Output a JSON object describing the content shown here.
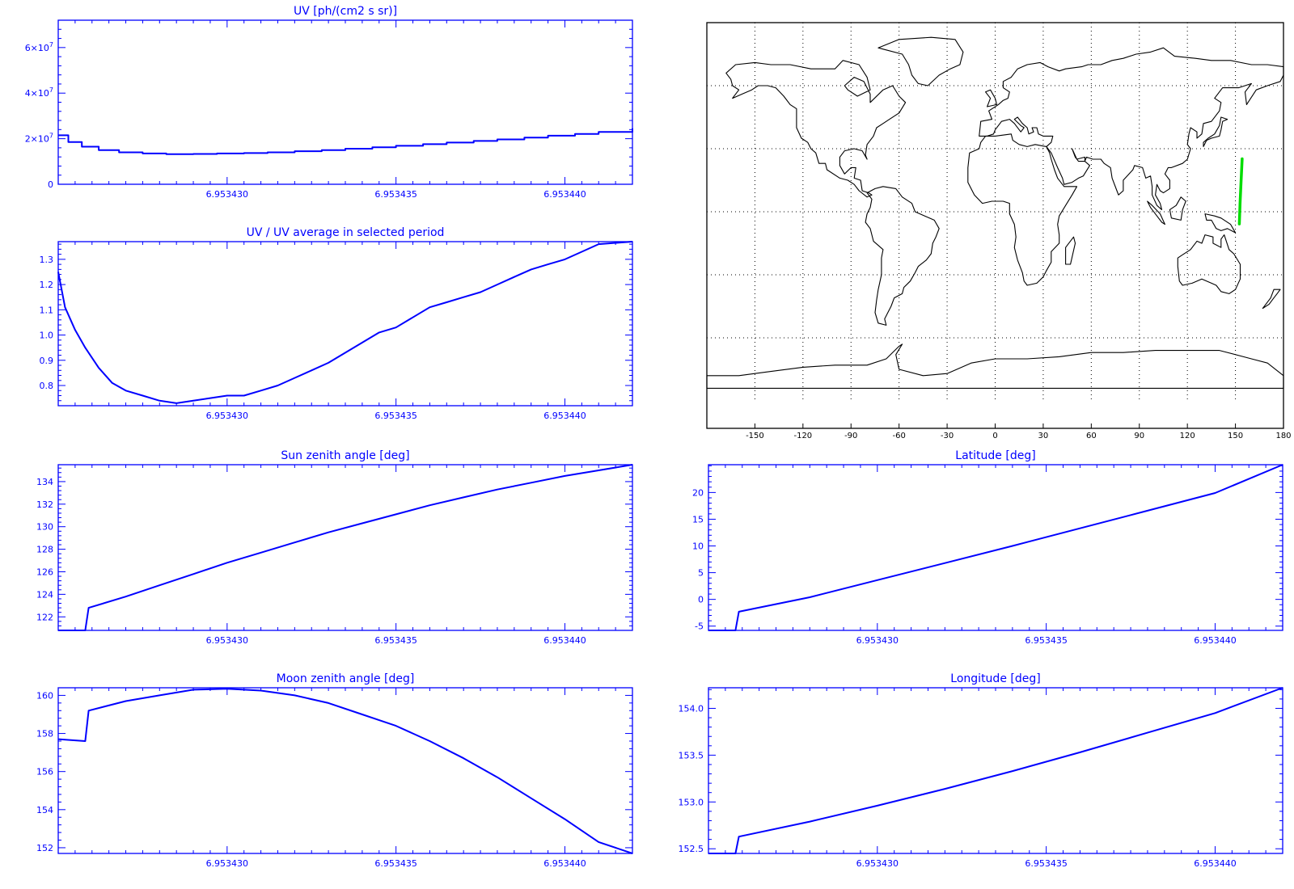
{
  "colors": {
    "axis": "#0000ff",
    "series": "#0000ff",
    "track": "#00dd00",
    "map": "#000000"
  },
  "chart_data": [
    {
      "id": "uv",
      "type": "line",
      "step": true,
      "title": "UV [ph/(cm2 s sr)]",
      "xlim": [
        6.953425,
        6.953442
      ],
      "ylim": [
        0,
        72000000
      ],
      "xticks": [
        6.95343,
        6.953435,
        6.95344
      ],
      "xticklabels": [
        "6.953430",
        "6.953435",
        "6.953440"
      ],
      "yticks": [
        0,
        20000000,
        40000000,
        60000000
      ],
      "yticklabels": [
        {
          "text": "0"
        },
        {
          "text": "2×10",
          "sup": "7"
        },
        {
          "text": "4×10",
          "sup": "7"
        },
        {
          "text": "6×10",
          "sup": "7"
        }
      ],
      "x": [
        6.953425,
        6.9534253,
        6.9534257,
        6.9534262,
        6.9534268,
        6.9534275,
        6.9534282,
        6.953429,
        6.9534297,
        6.9534305,
        6.9534312,
        6.953432,
        6.9534328,
        6.9534335,
        6.9534343,
        6.953435,
        6.9534358,
        6.9534365,
        6.9534373,
        6.953438,
        6.9534388,
        6.9534395,
        6.9534403,
        6.953441,
        6.953442
      ],
      "y": [
        21500000,
        18500000,
        16500000,
        15000000,
        14000000,
        13500000,
        13200000,
        13300000,
        13500000,
        13700000,
        14000000,
        14500000,
        15000000,
        15600000,
        16200000,
        16900000,
        17600000,
        18300000,
        19000000,
        19700000,
        20500000,
        21300000,
        22100000,
        23000000,
        24500000
      ]
    },
    {
      "id": "uvratio",
      "type": "line",
      "title": "UV / UV average in selected period",
      "xlim": [
        6.953425,
        6.953442
      ],
      "ylim": [
        0.72,
        1.37
      ],
      "xticks": [
        6.95343,
        6.953435,
        6.95344
      ],
      "xticklabels": [
        "6.953430",
        "6.953435",
        "6.953440"
      ],
      "yticks": [
        0.8,
        0.9,
        1.0,
        1.1,
        1.2,
        1.3
      ],
      "yticklabels": [
        {
          "text": "0.8"
        },
        {
          "text": "0.9"
        },
        {
          "text": "1.0"
        },
        {
          "text": "1.1"
        },
        {
          "text": "1.2"
        },
        {
          "text": "1.3"
        }
      ],
      "x": [
        6.953425,
        6.9534252,
        6.9534255,
        6.9534258,
        6.9534262,
        6.9534266,
        6.953427,
        6.9534275,
        6.953428,
        6.9534285,
        6.953429,
        6.9534295,
        6.95343,
        6.9534305,
        6.953431,
        6.9534315,
        6.953432,
        6.9534325,
        6.953433,
        6.9534335,
        6.953434,
        6.9534345,
        6.953435,
        6.9534355,
        6.953436,
        6.9534365,
        6.953437,
        6.9534375,
        6.953438,
        6.9534385,
        6.953439,
        6.9534395,
        6.95344,
        6.9534405,
        6.953441,
        6.953442
      ],
      "y": [
        1.25,
        1.11,
        1.02,
        0.95,
        0.87,
        0.81,
        0.78,
        0.76,
        0.74,
        0.73,
        0.74,
        0.75,
        0.76,
        0.76,
        0.78,
        0.8,
        0.83,
        0.86,
        0.89,
        0.93,
        0.97,
        1.01,
        1.03,
        1.07,
        1.11,
        1.13,
        1.15,
        1.17,
        1.2,
        1.23,
        1.26,
        1.28,
        1.3,
        1.33,
        1.36,
        1.37
      ]
    },
    {
      "id": "sza",
      "type": "line",
      "title": "Sun zenith angle [deg]",
      "xlim": [
        6.953425,
        6.953442
      ],
      "ylim": [
        120.8,
        135.5
      ],
      "xticks": [
        6.95343,
        6.953435,
        6.95344
      ],
      "xticklabels": [
        "6.953430",
        "6.953435",
        "6.953440"
      ],
      "yticks": [
        122,
        124,
        126,
        128,
        130,
        132,
        134
      ],
      "yticklabels": [
        {
          "text": "122"
        },
        {
          "text": "124"
        },
        {
          "text": "126"
        },
        {
          "text": "128"
        },
        {
          "text": "130"
        },
        {
          "text": "132"
        },
        {
          "text": "134"
        }
      ],
      "x": [
        6.953425,
        6.9534258,
        6.9534259,
        6.953427,
        6.953428,
        6.953429,
        6.95343,
        6.953431,
        6.953432,
        6.953433,
        6.953434,
        6.953435,
        6.953436,
        6.953437,
        6.953438,
        6.953439,
        6.95344,
        6.953441,
        6.953442
      ],
      "y": [
        120.8,
        120.8,
        122.8,
        123.8,
        124.8,
        125.8,
        126.8,
        127.7,
        128.6,
        129.5,
        130.3,
        131.1,
        131.9,
        132.6,
        133.3,
        133.9,
        134.5,
        135.0,
        135.5
      ]
    },
    {
      "id": "mza",
      "type": "line",
      "title": "Moon zenith angle [deg]",
      "xlim": [
        6.953425,
        6.953442
      ],
      "ylim": [
        151.7,
        160.4
      ],
      "xticks": [
        6.95343,
        6.953435,
        6.95344
      ],
      "xticklabels": [
        "6.953430",
        "6.953435",
        "6.953440"
      ],
      "yticks": [
        152,
        154,
        156,
        158,
        160
      ],
      "yticklabels": [
        {
          "text": "152"
        },
        {
          "text": "154"
        },
        {
          "text": "156"
        },
        {
          "text": "158"
        },
        {
          "text": "160"
        }
      ],
      "x": [
        6.953425,
        6.9534258,
        6.9534259,
        6.953427,
        6.953428,
        6.953429,
        6.95343,
        6.953431,
        6.953432,
        6.953433,
        6.953434,
        6.953435,
        6.953436,
        6.953437,
        6.953438,
        6.953439,
        6.95344,
        6.953441,
        6.953442
      ],
      "y": [
        157.7,
        157.6,
        159.2,
        159.7,
        160.0,
        160.3,
        160.35,
        160.25,
        160.0,
        159.6,
        159.0,
        158.4,
        157.6,
        156.7,
        155.7,
        154.6,
        153.5,
        152.3,
        151.7
      ]
    },
    {
      "id": "lat",
      "type": "line",
      "title": "Latitude [deg]",
      "xlim": [
        6.953425,
        6.953442
      ],
      "ylim": [
        -5.8,
        25.2
      ],
      "xticks": [
        6.95343,
        6.953435,
        6.95344
      ],
      "xticklabels": [
        "6.953430",
        "6.953435",
        "6.953440"
      ],
      "yticks": [
        -5,
        0,
        5,
        10,
        15,
        20
      ],
      "yticklabels": [
        {
          "text": "-5"
        },
        {
          "text": "0"
        },
        {
          "text": "5"
        },
        {
          "text": "10"
        },
        {
          "text": "15"
        },
        {
          "text": "20"
        }
      ],
      "x": [
        6.953425,
        6.9534258,
        6.9534259,
        6.953428,
        6.95343,
        6.953432,
        6.953434,
        6.953436,
        6.953438,
        6.95344,
        6.953442
      ],
      "y": [
        -5.8,
        -5.8,
        -2.3,
        0.4,
        3.6,
        6.8,
        10.0,
        13.3,
        16.6,
        19.9,
        25.2
      ]
    },
    {
      "id": "lon",
      "type": "line",
      "title": "Longitude [deg]",
      "xlim": [
        6.953425,
        6.953442
      ],
      "ylim": [
        152.45,
        154.22
      ],
      "xticks": [
        6.95343,
        6.953435,
        6.95344
      ],
      "xticklabels": [
        "6.953430",
        "6.953435",
        "6.953440"
      ],
      "yticks": [
        152.5,
        153.0,
        153.5,
        154.0
      ],
      "yticklabels": [
        {
          "text": "152.5"
        },
        {
          "text": "153.0"
        },
        {
          "text": "153.5"
        },
        {
          "text": "154.0"
        }
      ],
      "x": [
        6.953425,
        6.9534258,
        6.9534259,
        6.953428,
        6.95343,
        6.953432,
        6.953434,
        6.953436,
        6.953438,
        6.95344,
        6.953442
      ],
      "y": [
        152.45,
        152.45,
        152.63,
        152.79,
        152.96,
        153.14,
        153.33,
        153.53,
        153.74,
        153.95,
        154.22
      ]
    },
    {
      "id": "map",
      "type": "map",
      "title": "",
      "xlim": [
        -180,
        180
      ],
      "ylim": [
        -90,
        90
      ],
      "xticks": [
        -150,
        -120,
        -90,
        -60,
        -30,
        0,
        30,
        60,
        90,
        120,
        150,
        180
      ],
      "xticklabels": [
        "-150",
        "-120",
        "-90",
        "-60",
        "-30",
        "0",
        "30",
        "60",
        "90",
        "120",
        "150",
        "180"
      ],
      "grid": true,
      "track": {
        "lon": [
          152.45,
          152.9,
          153.5,
          154.2
        ],
        "lat": [
          -5.8,
          4.0,
          14.0,
          25.2
        ]
      }
    }
  ]
}
